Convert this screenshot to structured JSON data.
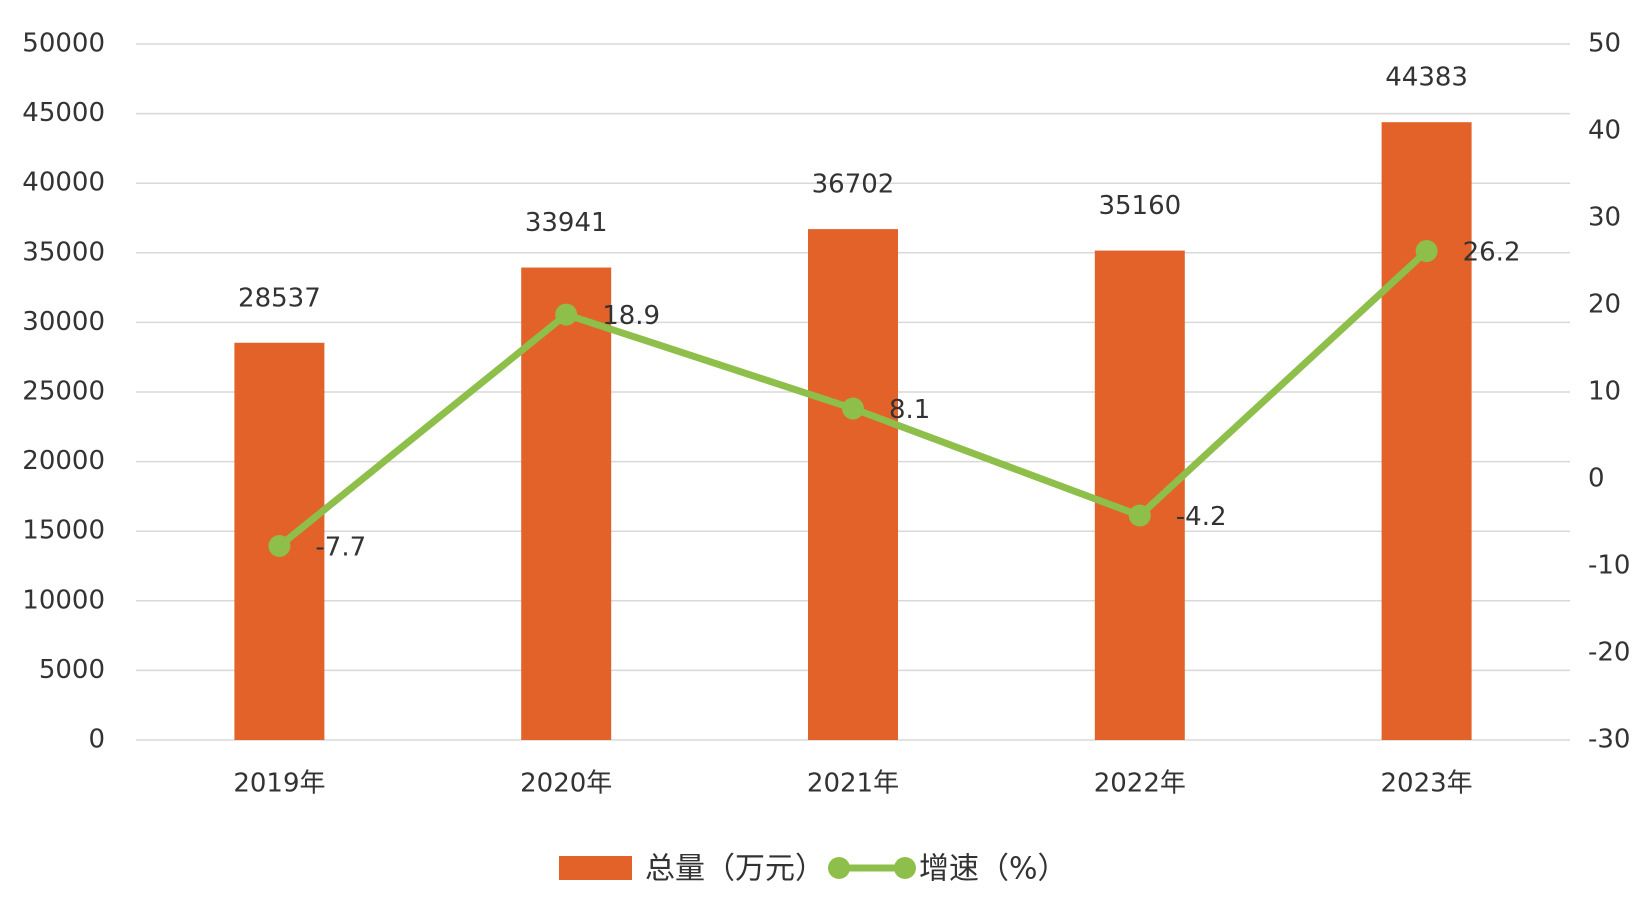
{
  "chart_data": {
    "type": "bar",
    "categories": [
      "2019年",
      "2020年",
      "2021年",
      "2022年",
      "2023年"
    ],
    "series": [
      {
        "name": "总量（万元）",
        "type": "bar",
        "color": "#e2622a",
        "values": [
          28537,
          33941,
          36702,
          35160,
          44383
        ]
      },
      {
        "name": "增速（%）",
        "type": "line",
        "color": "#8dbf4a",
        "axis": "y2",
        "values": [
          -7.7,
          18.9,
          8.1,
          -4.2,
          26.2
        ]
      }
    ],
    "ylim": [
      0,
      50000
    ],
    "yticks": [
      0,
      5000,
      10000,
      15000,
      20000,
      25000,
      30000,
      35000,
      40000,
      45000,
      50000
    ],
    "y2lim": [
      -30,
      50
    ],
    "y2ticks": [
      -30,
      -20,
      -10,
      0,
      10,
      20,
      30,
      40,
      50
    ],
    "grid": true
  }
}
